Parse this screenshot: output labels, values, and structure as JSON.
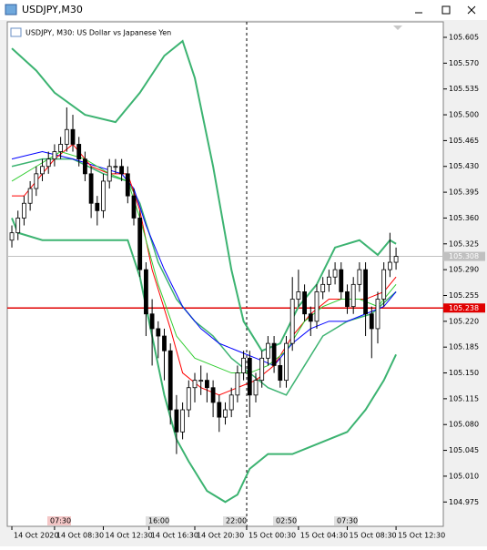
{
  "window_title": "USDJPY,M30",
  "chart_data": {
    "type": "candlestick",
    "title": "USDJPY, M30:  US Dollar vs Japanese Yen",
    "up_color": "#ffffff",
    "down_color": "#000000",
    "xlim": [
      -0.75,
      70.75
    ],
    "ylim": [
      104.942,
      105.626
    ],
    "yticks": [
      105.605,
      {
        "value": 105.57,
        "label": "105.570"
      },
      105.535,
      {
        "value": 105.5,
        "label": "105.500"
      },
      105.465,
      {
        "value": 105.43,
        "label": "105.430"
      },
      105.395,
      {
        "value": 105.36,
        "label": "105.360"
      },
      105.325,
      {
        "value": 105.29,
        "label": "105.290"
      },
      105.255,
      {
        "value": 105.22,
        "label": "105.220"
      },
      105.185,
      {
        "value": 105.15,
        "label": "105.150"
      },
      105.115,
      {
        "value": 105.08,
        "label": "105.080"
      },
      105.045,
      {
        "value": 105.01,
        "label": "105.010"
      },
      104.975
    ],
    "xticks": [
      {
        "value": 0,
        "label": "14 Oct 2020"
      },
      {
        "value": 7,
        "label": "14 Oct 08:30"
      },
      {
        "value": 15,
        "label": "14 Oct 12:30"
      },
      {
        "value": 22.5,
        "label": "14 Oct 16:30"
      },
      {
        "value": 30,
        "label": "14 Oct 20:30"
      },
      {
        "value": 38.5,
        "label": "15 Oct 00:30"
      },
      {
        "value": 47,
        "label": "15 Oct 04:30"
      },
      {
        "value": 55,
        "label": "15 Oct 08:30"
      },
      {
        "value": 63,
        "label": "15 Oct 12:30"
      }
    ],
    "open": [
      105.33,
      105.34,
      105.36,
      105.38,
      105.4,
      105.42,
      105.43,
      105.44,
      105.45,
      105.46,
      105.48,
      105.46,
      105.44,
      105.42,
      105.38,
      105.37,
      105.41,
      105.43,
      105.43,
      105.42,
      105.39,
      105.36,
      105.29,
      105.23,
      105.21,
      105.2,
      105.18,
      105.1,
      105.07,
      105.1,
      105.13,
      105.14,
      105.14,
      105.13,
      105.11,
      105.09,
      105.1,
      105.12,
      105.15,
      105.17,
      105.12,
      105.14,
      105.17,
      105.19,
      105.16,
      105.14,
      105.19,
      105.25,
      105.26,
      105.23,
      105.22,
      105.26,
      105.27,
      105.28,
      105.29,
      105.26,
      105.24,
      105.27,
      105.29,
      105.23,
      105.21,
      105.25,
      105.29,
      105.3
    ],
    "high": [
      105.35,
      105.37,
      105.39,
      105.41,
      105.43,
      105.44,
      105.45,
      105.46,
      105.47,
      105.51,
      105.5,
      105.47,
      105.45,
      105.43,
      105.39,
      105.42,
      105.44,
      105.44,
      105.44,
      105.43,
      105.4,
      105.37,
      105.3,
      105.25,
      105.22,
      105.21,
      105.19,
      105.12,
      105.11,
      105.14,
      105.15,
      105.16,
      105.15,
      105.14,
      105.12,
      105.11,
      105.13,
      105.16,
      105.18,
      105.18,
      105.15,
      105.18,
      105.2,
      105.2,
      105.17,
      105.2,
      105.28,
      105.29,
      105.27,
      105.24,
      105.27,
      105.28,
      105.29,
      105.3,
      105.3,
      105.27,
      105.28,
      105.3,
      105.3,
      105.24,
      105.26,
      105.3,
      105.34,
      105.32
    ],
    "low": [
      105.32,
      105.33,
      105.35,
      105.37,
      105.39,
      105.41,
      105.42,
      105.43,
      105.44,
      105.45,
      105.45,
      105.43,
      105.41,
      105.36,
      105.35,
      105.36,
      105.4,
      105.42,
      105.41,
      105.38,
      105.35,
      105.28,
      105.2,
      105.16,
      105.17,
      105.14,
      105.08,
      105.04,
      105.06,
      105.09,
      105.11,
      105.12,
      105.11,
      105.09,
      105.07,
      105.08,
      105.09,
      105.11,
      105.14,
      105.09,
      105.11,
      105.13,
      105.16,
      105.15,
      105.13,
      105.13,
      105.18,
      105.24,
      105.22,
      105.2,
      105.21,
      105.25,
      105.26,
      105.27,
      105.25,
      105.23,
      105.23,
      105.26,
      105.2,
      105.17,
      105.19,
      105.24,
      105.28,
      105.29
    ],
    "close": [
      105.34,
      105.36,
      105.38,
      105.4,
      105.42,
      105.43,
      105.44,
      105.45,
      105.46,
      105.48,
      105.46,
      105.44,
      105.42,
      105.38,
      105.37,
      105.41,
      105.43,
      105.43,
      105.42,
      105.39,
      105.36,
      105.29,
      105.23,
      105.21,
      105.2,
      105.18,
      105.1,
      105.07,
      105.1,
      105.13,
      105.14,
      105.14,
      105.13,
      105.11,
      105.09,
      105.1,
      105.12,
      105.15,
      105.17,
      105.12,
      105.14,
      105.17,
      105.19,
      105.16,
      105.14,
      105.19,
      105.25,
      105.26,
      105.23,
      105.22,
      105.26,
      105.27,
      105.28,
      105.29,
      105.26,
      105.24,
      105.27,
      105.29,
      105.23,
      105.21,
      105.25,
      105.29,
      105.3,
      105.308
    ],
    "series": [
      {
        "color": "#3cb371",
        "width": 2,
        "x": [
          0,
          4,
          7,
          12,
          17,
          21,
          25,
          28,
          30,
          33,
          36,
          38,
          41,
          44,
          47,
          50,
          53,
          57,
          60,
          62,
          63
        ],
        "values": [
          105.59,
          105.56,
          105.53,
          105.5,
          105.49,
          105.53,
          105.58,
          105.6,
          105.55,
          105.43,
          105.29,
          105.22,
          105.18,
          105.19,
          105.24,
          105.27,
          105.32,
          105.33,
          105.31,
          105.33,
          105.325
        ]
      },
      {
        "color": "#3cb371",
        "width": 2,
        "x": [
          0,
          1,
          5,
          10,
          15,
          19,
          21,
          23,
          25,
          27,
          29,
          32,
          35,
          37,
          39,
          42,
          46,
          49,
          52,
          55,
          58,
          61,
          63
        ],
        "values": [
          105.36,
          105.34,
          105.33,
          105.33,
          105.33,
          105.33,
          105.28,
          105.2,
          105.12,
          105.06,
          105.03,
          104.99,
          104.975,
          104.985,
          105.02,
          105.04,
          105.04,
          105.05,
          105.06,
          105.07,
          105.1,
          105.14,
          105.175
        ]
      },
      {
        "color": "#3cb371",
        "width": 1.5,
        "x": [
          0,
          5,
          10,
          15,
          19,
          21,
          24,
          27,
          30,
          33,
          36,
          39,
          42,
          45,
          48,
          51,
          55,
          59,
          63
        ],
        "values": [
          105.43,
          105.44,
          105.44,
          105.42,
          105.41,
          105.38,
          105.3,
          105.25,
          105.22,
          105.2,
          105.17,
          105.15,
          105.13,
          105.12,
          105.16,
          105.2,
          105.22,
          105.23,
          105.26
        ]
      },
      {
        "color": "#0000ff",
        "width": 1,
        "x": [
          0,
          5,
          10,
          14,
          18,
          20,
          22,
          25,
          28,
          31,
          34,
          37,
          40,
          43,
          46,
          49,
          52,
          55,
          58,
          61,
          63
        ],
        "values": [
          105.44,
          105.45,
          105.44,
          105.43,
          105.42,
          105.4,
          105.35,
          105.29,
          105.24,
          105.21,
          105.19,
          105.18,
          105.17,
          105.16,
          105.19,
          105.21,
          105.22,
          105.22,
          105.23,
          105.24,
          105.26
        ]
      },
      {
        "color": "#ff0000",
        "width": 1,
        "x": [
          0,
          2,
          4,
          7,
          10,
          13,
          16,
          19,
          21,
          23,
          26,
          28,
          31,
          34,
          37,
          40,
          43,
          46,
          49,
          52,
          55,
          58,
          61,
          63
        ],
        "values": [
          105.39,
          105.39,
          105.41,
          105.44,
          105.46,
          105.43,
          105.42,
          105.42,
          105.37,
          105.29,
          105.21,
          105.15,
          105.13,
          105.12,
          105.13,
          105.14,
          105.16,
          105.2,
          105.23,
          105.25,
          105.25,
          105.25,
          105.26,
          105.28
        ]
      },
      {
        "color": "#32cd32",
        "width": 1,
        "x": [
          0,
          4,
          8,
          12,
          16,
          19,
          21,
          24,
          27,
          30,
          33,
          36,
          39,
          42,
          45,
          48,
          51,
          54,
          57,
          60,
          63
        ],
        "values": [
          105.41,
          105.43,
          105.45,
          105.44,
          105.42,
          105.41,
          105.36,
          105.27,
          105.2,
          105.17,
          105.16,
          105.15,
          105.15,
          105.16,
          105.18,
          105.22,
          105.24,
          105.25,
          105.25,
          105.24,
          105.27
        ]
      }
    ],
    "price_lines": [
      {
        "value": 105.308,
        "color": "#c0c0c0"
      },
      {
        "value": 105.238,
        "color": "#e00000"
      }
    ],
    "time_labels": [
      "07:30",
      "16:00",
      "22:00",
      "02:50",
      "07:30"
    ]
  }
}
